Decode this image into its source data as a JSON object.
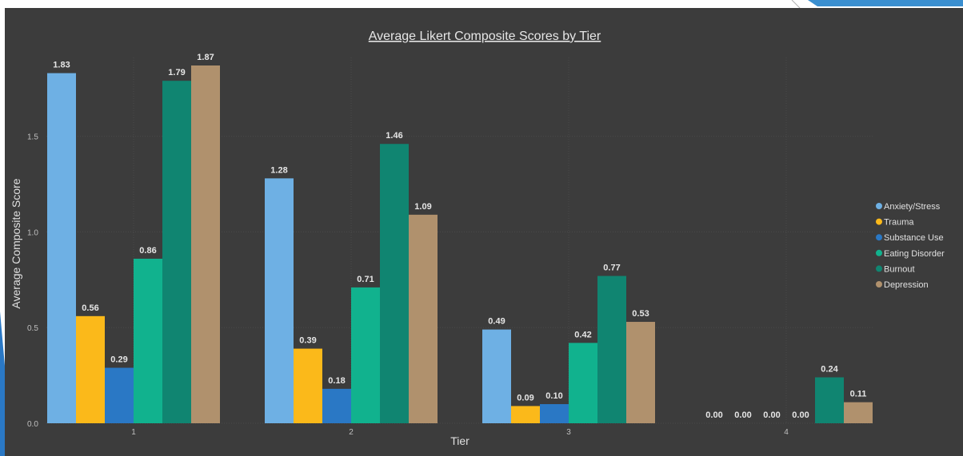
{
  "chart_data": {
    "type": "bar",
    "title": "Average Likert Composite Scores by Tier",
    "xlabel": "Tier",
    "ylabel": "Average Composite Score",
    "categories": [
      "1",
      "2",
      "3",
      "4"
    ],
    "yticks": [
      "0.0",
      "0.5",
      "1.0",
      "1.5"
    ],
    "ylim": [
      0,
      1.87
    ],
    "legend_position": "right",
    "grid": true,
    "series": [
      {
        "name": "Anxiety/Stress",
        "color": "#6eb0e4",
        "values": [
          1.83,
          1.28,
          0.49,
          0.0
        ],
        "labels": [
          "1.83",
          "1.28",
          "0.49",
          "0.00"
        ]
      },
      {
        "name": "Trauma",
        "color": "#fbb91a",
        "values": [
          0.56,
          0.39,
          0.09,
          0.0
        ],
        "labels": [
          "0.56",
          "0.39",
          "0.09",
          "0.00"
        ]
      },
      {
        "name": "Substance Use",
        "color": "#2a78c5",
        "values": [
          0.29,
          0.18,
          0.1,
          0.0
        ],
        "labels": [
          "0.29",
          "0.18",
          "0.10",
          "0.00"
        ]
      },
      {
        "name": "Eating Disorder",
        "color": "#11b28e",
        "values": [
          0.86,
          0.71,
          0.42,
          0.0
        ],
        "labels": [
          "0.86",
          "0.71",
          "0.42",
          "0.00"
        ]
      },
      {
        "name": "Burnout",
        "color": "#108571",
        "values": [
          1.79,
          1.46,
          0.77,
          0.24
        ],
        "labels": [
          "1.79",
          "1.46",
          "0.77",
          "0.24"
        ]
      },
      {
        "name": "Depression",
        "color": "#b0916d",
        "values": [
          1.87,
          1.09,
          0.53,
          0.11
        ],
        "labels": [
          "1.87",
          "1.09",
          "0.53",
          "0.11"
        ]
      }
    ]
  }
}
